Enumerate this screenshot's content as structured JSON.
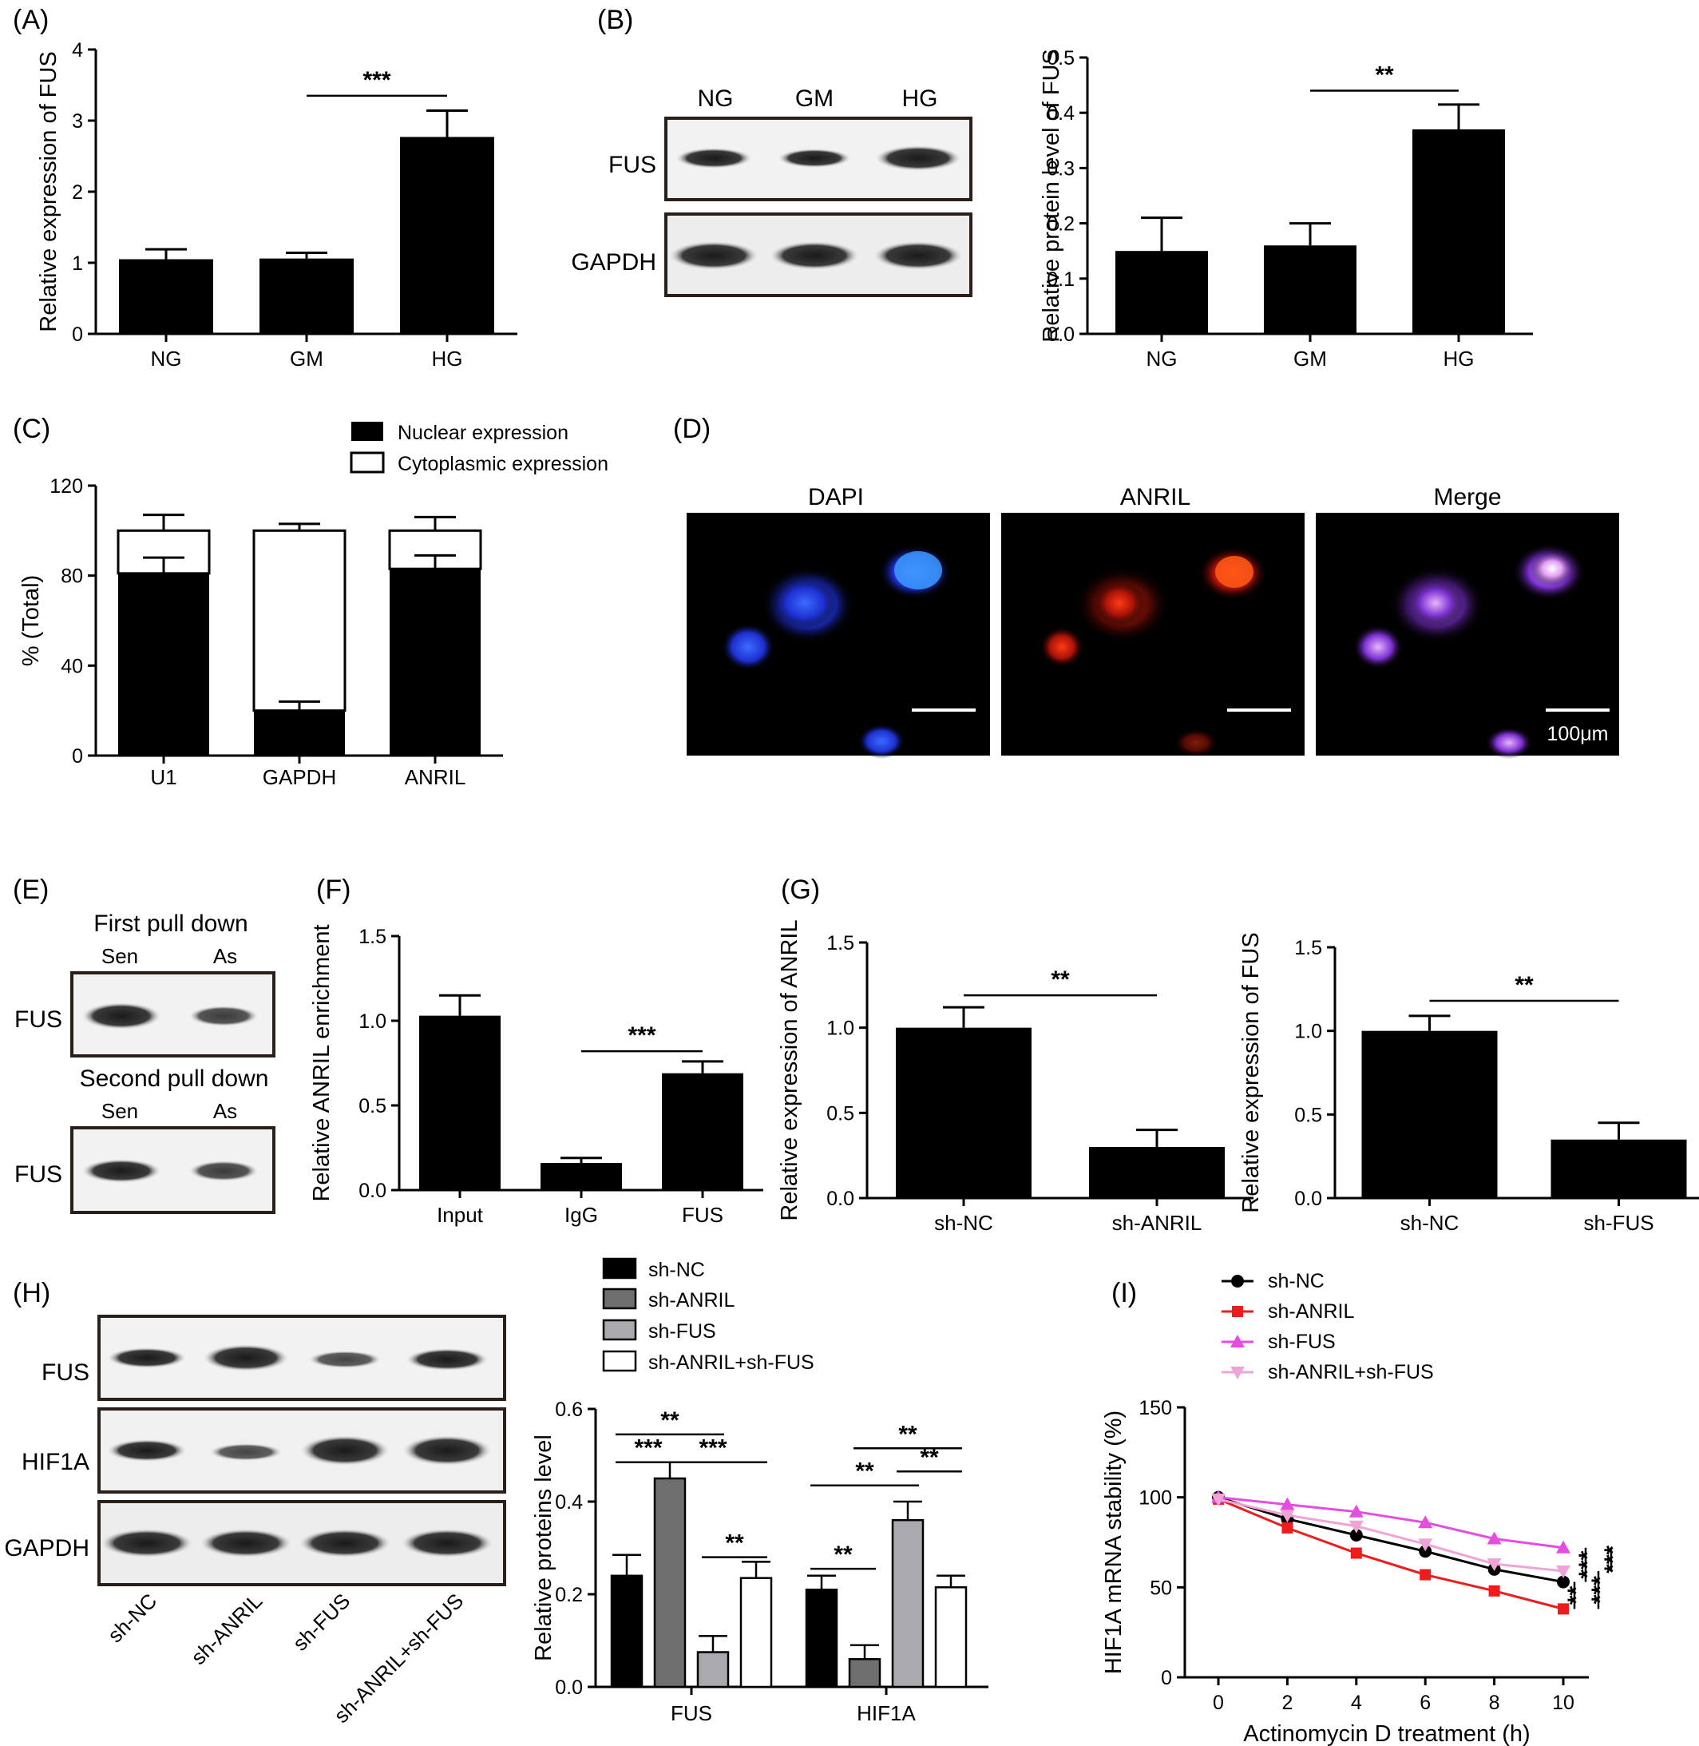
{
  "colors": {
    "black": "#000000",
    "darkgray": "#6e6e6e",
    "lightgray": "#a9a9ae",
    "white": "#ffffff",
    "red": "#ee1c1c",
    "magenta": "#e54ce0",
    "pink": "#f0a4d6"
  },
  "panels": {
    "A": "(A)",
    "B": "(B)",
    "C": "(C)",
    "D": "(D)",
    "E": "(E)",
    "F": "(F)",
    "G": "(G)",
    "H": "(H)",
    "I": "(I)"
  },
  "blots": {
    "B": {
      "lanes": [
        "NG",
        "GM",
        "HG"
      ],
      "rows": [
        "FUS",
        "GAPDH"
      ]
    },
    "E": {
      "first_title": "First pull down",
      "second_title": "Second pull down",
      "lanes": [
        "Sen",
        "As"
      ],
      "row": "FUS"
    },
    "H": {
      "lanes": [
        "sh-NC",
        "sh-ANRIL",
        "sh-FUS",
        "sh-ANRIL+sh-FUS"
      ],
      "rows": [
        "FUS",
        "HIF1A",
        "GAPDH"
      ]
    }
  },
  "micro": {
    "labels": [
      "DAPI",
      "ANRIL",
      "Merge"
    ],
    "scale": "100μm",
    "icons": [
      "dapi-image",
      "anril-image",
      "merge-image"
    ]
  },
  "chart_data": [
    {
      "id": "A",
      "type": "bar",
      "categories": [
        "NG",
        "GM",
        "HG"
      ],
      "values": [
        1.05,
        1.06,
        2.77
      ],
      "errors": [
        0.14,
        0.08,
        0.37
      ],
      "ylabel": "Relative expression of FUS",
      "ylim": [
        0,
        4
      ],
      "yticks": [
        "0",
        "1",
        "2",
        "3",
        "4"
      ],
      "sig": [
        {
          "label": "***"
        }
      ]
    },
    {
      "id": "B",
      "type": "bar",
      "categories": [
        "NG",
        "GM",
        "HG"
      ],
      "values": [
        0.15,
        0.16,
        0.37
      ],
      "errors": [
        0.06,
        0.04,
        0.045
      ],
      "ylabel": "Relative protein level of FUS",
      "ylim": [
        0,
        0.5
      ],
      "yticks": [
        "0.0",
        "0.1",
        "0.2",
        "0.3",
        "0.4",
        "0.5"
      ],
      "sig": [
        {
          "label": "**"
        }
      ]
    },
    {
      "id": "C",
      "type": "bar",
      "stacked": true,
      "categories": [
        "U1",
        "GAPDH",
        "ANRIL"
      ],
      "series": [
        {
          "name": "Nuclear expression",
          "values": [
            81,
            20,
            83
          ],
          "errors": [
            7,
            4,
            6
          ]
        },
        {
          "name": "Cytoplasmic expression",
          "values": [
            19,
            80,
            17
          ],
          "errors": [
            7,
            3,
            6
          ]
        }
      ],
      "ylabel": "% (Total)",
      "ylim": [
        0,
        120
      ],
      "yticks": [
        "0",
        "40",
        "80",
        "120"
      ]
    },
    {
      "id": "F",
      "type": "bar",
      "categories": [
        "Input",
        "IgG",
        "FUS"
      ],
      "values": [
        1.03,
        0.16,
        0.69
      ],
      "errors": [
        0.12,
        0.03,
        0.07
      ],
      "ylabel": "Relative ANRIL enrichment",
      "ylim": [
        0,
        1.5
      ],
      "yticks": [
        "0.0",
        "0.5",
        "1.0",
        "1.5"
      ],
      "sig": [
        {
          "label": "***"
        }
      ]
    },
    {
      "id": "G1",
      "type": "bar",
      "categories": [
        "sh-NC",
        "sh-ANRIL"
      ],
      "values": [
        1.0,
        0.3
      ],
      "errors": [
        0.12,
        0.1
      ],
      "ylabel": "Relative expression of ANRIL",
      "ylim": [
        0,
        1.5
      ],
      "yticks": [
        "0.0",
        "0.5",
        "1.0",
        "1.5"
      ],
      "sig": [
        {
          "label": "**"
        }
      ]
    },
    {
      "id": "G2",
      "type": "bar",
      "categories": [
        "sh-NC",
        "sh-FUS"
      ],
      "values": [
        1.0,
        0.35
      ],
      "errors": [
        0.09,
        0.1
      ],
      "ylabel": "Relative expression of FUS",
      "ylim": [
        0,
        1.5
      ],
      "yticks": [
        "0.0",
        "0.5",
        "1.0",
        "1.5"
      ],
      "sig": [
        {
          "label": "**"
        }
      ]
    },
    {
      "id": "H",
      "type": "bar",
      "categories": [
        "FUS",
        "HIF1A"
      ],
      "series": [
        {
          "name": "sh-NC",
          "values": [
            0.24,
            0.21
          ],
          "errors": [
            0.045,
            0.03
          ]
        },
        {
          "name": "sh-ANRIL",
          "values": [
            0.45,
            0.06
          ],
          "errors": [
            0.035,
            0.03
          ]
        },
        {
          "name": "sh-FUS",
          "values": [
            0.075,
            0.36
          ],
          "errors": [
            0.035,
            0.04
          ]
        },
        {
          "name": "sh-ANRIL+sh-FUS",
          "values": [
            0.235,
            0.215
          ],
          "errors": [
            0.035,
            0.025
          ]
        }
      ],
      "ylabel": "Relative proteins level",
      "ylim": [
        0,
        0.6
      ],
      "yticks": [
        "0.0",
        "0.2",
        "0.4",
        "0.6"
      ],
      "sig_labels": [
        "**",
        "***",
        "***",
        "**",
        "**",
        "**",
        "**",
        "**"
      ]
    },
    {
      "id": "I",
      "type": "line",
      "x": [
        0,
        2,
        4,
        6,
        8,
        10
      ],
      "series": [
        {
          "name": "sh-NC",
          "values": [
            100,
            88,
            79,
            70,
            60,
            53
          ]
        },
        {
          "name": "sh-ANRIL",
          "values": [
            99,
            83,
            69,
            57,
            48,
            38
          ]
        },
        {
          "name": "sh-FUS",
          "values": [
            100,
            96,
            92,
            86,
            77,
            72
          ]
        },
        {
          "name": "sh-ANRIL+sh-FUS",
          "values": [
            99,
            90,
            84,
            74,
            63,
            59
          ]
        }
      ],
      "xlabel": "Actinomycin D treatment (h)",
      "ylabel": "HIF1A mRNA stability (%)",
      "ylim": [
        0,
        150
      ],
      "xlim": [
        0,
        10
      ],
      "yticks": [
        "0",
        "50",
        "100",
        "150"
      ],
      "xticks": [
        "0",
        "2",
        "4",
        "6",
        "8",
        "10"
      ],
      "sig_labels": [
        "**",
        "***",
        "***",
        "***"
      ]
    }
  ]
}
